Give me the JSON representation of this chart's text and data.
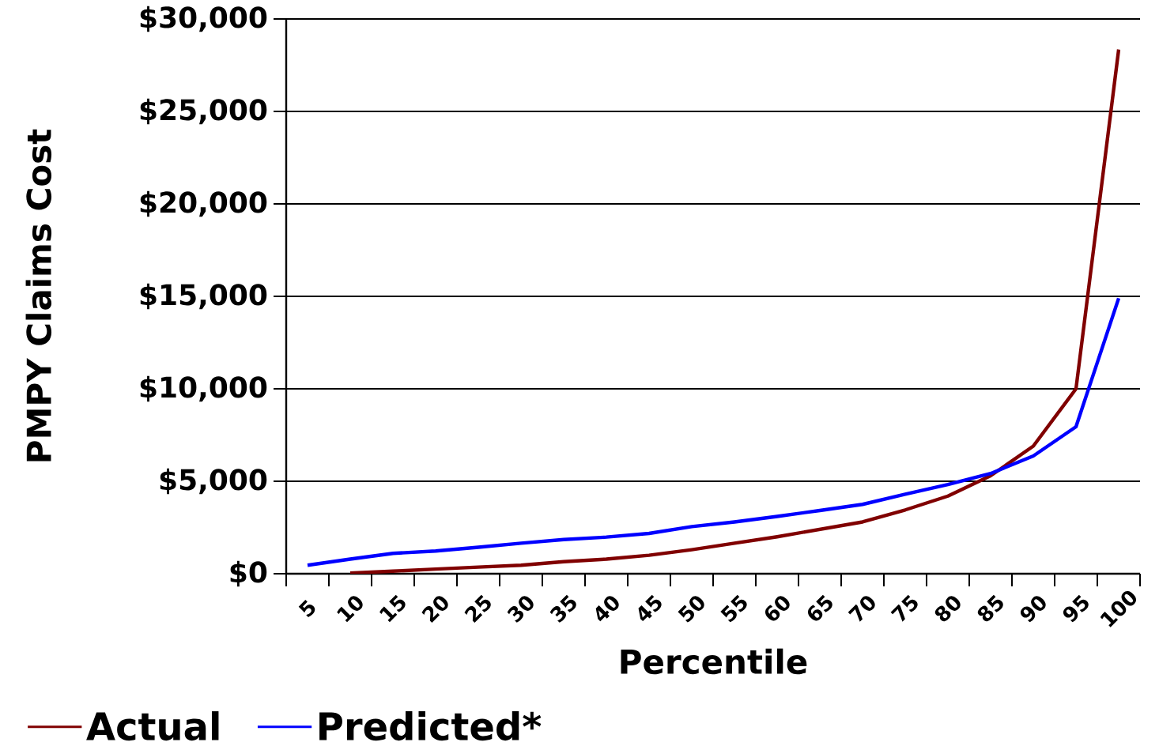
{
  "chart_data": {
    "type": "line",
    "xlabel": "Percentile",
    "ylabel": "PMPY Claims Cost",
    "categories": [
      "5",
      "10",
      "15",
      "20",
      "25",
      "30",
      "35",
      "40",
      "45",
      "50",
      "55",
      "60",
      "65",
      "70",
      "75",
      "80",
      "85",
      "90",
      "95",
      "100"
    ],
    "series": [
      {
        "name": "Actual",
        "color": "#800000",
        "values": [
          null,
          30,
          140,
          250,
          360,
          460,
          650,
          790,
          1000,
          1300,
          1650,
          2000,
          2400,
          2800,
          3450,
          4200,
          5300,
          6900,
          10000,
          28350
        ]
      },
      {
        "name": "Predicted*",
        "color": "#0000ff",
        "values": [
          460,
          790,
          1100,
          1230,
          1430,
          1650,
          1850,
          1980,
          2180,
          2550,
          2800,
          3100,
          3420,
          3750,
          4300,
          4820,
          5420,
          6370,
          7950,
          14900
        ]
      }
    ],
    "ylim": [
      0,
      30000
    ],
    "yticks": [
      {
        "value": 0,
        "label": "$0"
      },
      {
        "value": 5000,
        "label": "$5,000"
      },
      {
        "value": 10000,
        "label": "$10,000"
      },
      {
        "value": 15000,
        "label": "$15,000"
      },
      {
        "value": 20000,
        "label": "$20,000"
      },
      {
        "value": 25000,
        "label": "$25,000"
      },
      {
        "value": 30000,
        "label": "$30,000"
      }
    ],
    "grid": "y",
    "legend": "bottom",
    "line_style": "solid"
  }
}
